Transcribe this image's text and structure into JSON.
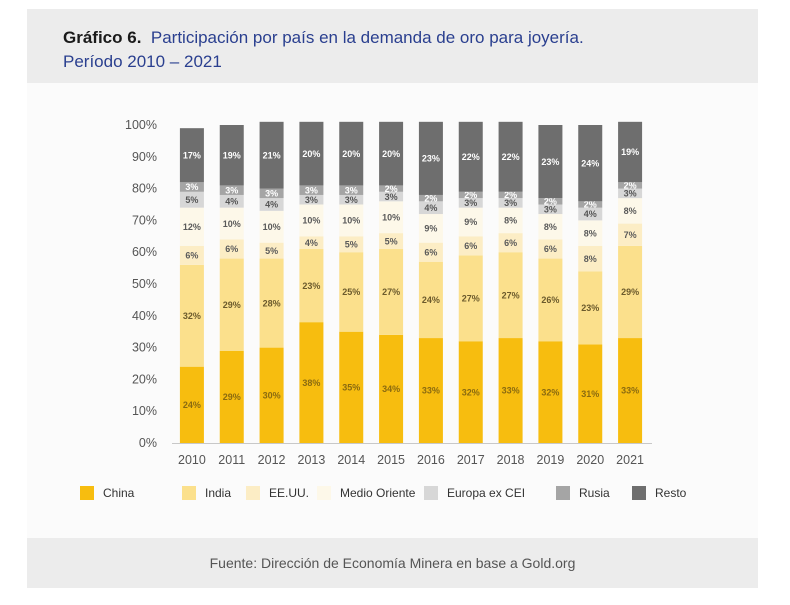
{
  "header": {
    "title_bold": "Gráfico 6.",
    "title_rest": "Participación por país en la demanda de oro para joyería.",
    "subtitle": "Período 2010 – 2021"
  },
  "footer": {
    "source": "Fuente: Dirección de Economía Minera en base a Gold.org"
  },
  "colors": {
    "China": "#f7bd0f",
    "India": "#fbe08c",
    "EE.UU.": "#fcedc5",
    "Medio Oriente": "#fdf8e9",
    "Europa ex CEI": "#d7d7d7",
    "Rusia": "#a5a5a5",
    "Resto": "#6e6e6e"
  },
  "chart_data": {
    "type": "bar",
    "stacked": true,
    "title": "Participación por país en la demanda de oro para joyería. Período 2010 – 2021",
    "xlabel": "",
    "ylabel": "",
    "ylim": [
      0,
      100
    ],
    "y_ticks": [
      "0%",
      "10%",
      "20%",
      "30%",
      "40%",
      "50%",
      "60%",
      "70%",
      "80%",
      "90%",
      "100%"
    ],
    "grid": false,
    "legend_position": "bottom",
    "categories": [
      "2010",
      "2011",
      "2012",
      "2013",
      "2014",
      "2015",
      "2016",
      "2017",
      "2018",
      "2019",
      "2020",
      "2021"
    ],
    "series": [
      {
        "name": "China",
        "values": [
          24,
          29,
          30,
          38,
          35,
          34,
          33,
          32,
          33,
          32,
          31,
          33
        ]
      },
      {
        "name": "India",
        "values": [
          32,
          29,
          28,
          23,
          25,
          27,
          24,
          27,
          27,
          26,
          23,
          29
        ]
      },
      {
        "name": "EE.UU.",
        "values": [
          6,
          6,
          5,
          4,
          5,
          5,
          6,
          6,
          6,
          6,
          8,
          7
        ]
      },
      {
        "name": "Medio Oriente",
        "values": [
          12,
          10,
          10,
          10,
          10,
          10,
          9,
          9,
          8,
          8,
          8,
          8
        ]
      },
      {
        "name": "Europa ex CEI",
        "values": [
          5,
          4,
          4,
          3,
          3,
          3,
          4,
          3,
          3,
          3,
          4,
          3
        ]
      },
      {
        "name": "Rusia",
        "values": [
          3,
          3,
          3,
          3,
          3,
          2,
          2,
          2,
          2,
          2,
          2,
          2
        ]
      },
      {
        "name": "Resto",
        "values": [
          17,
          19,
          21,
          20,
          20,
          20,
          23,
          22,
          22,
          23,
          24,
          19
        ]
      }
    ]
  }
}
